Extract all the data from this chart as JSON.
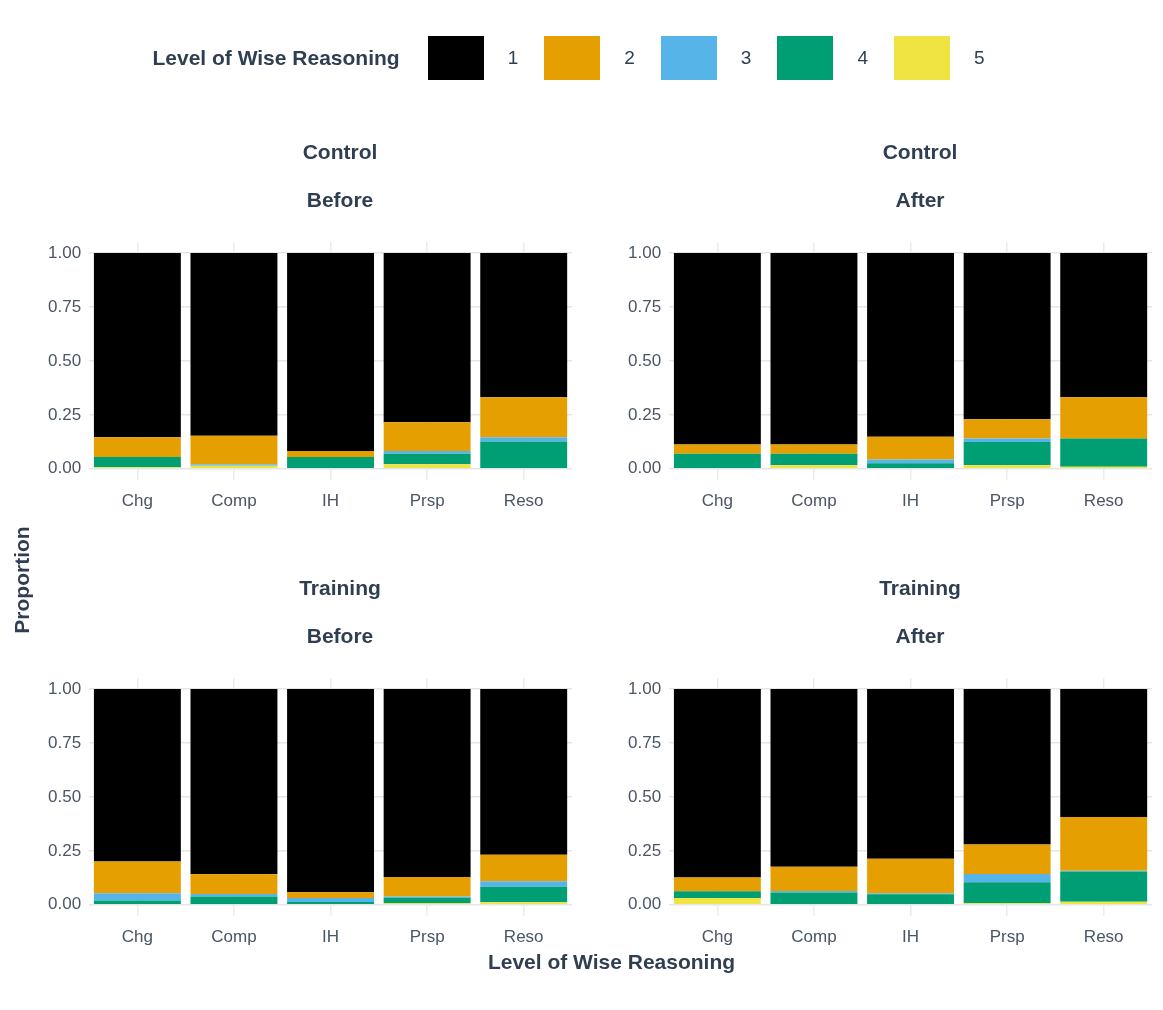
{
  "chart_data": [
    {
      "type": "bar",
      "title": "Control",
      "subtitle": "Before",
      "categories": [
        "Chg",
        "Comp",
        "IH",
        "Prsp",
        "Reso"
      ],
      "stacked": true,
      "legend": "top",
      "legend_title": "Level of Wise Reasoning",
      "ylabel": "Proportion",
      "xlabel": "Level of Wise Reasoning",
      "ylim": [
        -0.05,
        1.05
      ],
      "yticks": [
        {
          "value": 0,
          "label": "0.00"
        },
        {
          "value": 0.25,
          "label": "0.25"
        },
        {
          "value": 0.5,
          "label": "0.50"
        },
        {
          "value": 0.75,
          "label": "0.75"
        },
        {
          "value": 1,
          "label": "1.00"
        }
      ],
      "grid": true,
      "series": [
        {
          "name": "5",
          "color": "#f0e442",
          "values": [
            0.007,
            0.014,
            0,
            0.021,
            0
          ]
        },
        {
          "name": "4",
          "color": "#009e73",
          "values": [
            0.048,
            0,
            0.055,
            0.049,
            0.126
          ]
        },
        {
          "name": "3",
          "color": "#56b4e9",
          "values": [
            0,
            0.007,
            0,
            0.013,
            0.02
          ]
        },
        {
          "name": "2",
          "color": "#e69f00",
          "values": [
            0.091,
            0.132,
            0.028,
            0.133,
            0.186
          ]
        },
        {
          "name": "1",
          "color": "#000000",
          "values": [
            0.854,
            0.847,
            0.917,
            0.784,
            0.668
          ]
        }
      ]
    },
    {
      "type": "bar",
      "title": "Control",
      "subtitle": "After",
      "categories": [
        "Chg",
        "Comp",
        "IH",
        "Prsp",
        "Reso"
      ],
      "stacked": true,
      "ylim": [
        -0.05,
        1.05
      ],
      "yticks": [
        {
          "value": 0,
          "label": "0.00"
        },
        {
          "value": 0.25,
          "label": "0.25"
        },
        {
          "value": 0.5,
          "label": "0.50"
        },
        {
          "value": 0.75,
          "label": "0.75"
        },
        {
          "value": 1,
          "label": "1.00"
        }
      ],
      "grid": true,
      "series": [
        {
          "color": "#f0e442",
          "values": [
            0,
            0.017,
            0,
            0.017,
            0.009
          ]
        },
        {
          "color": "#009e73",
          "values": [
            0.07,
            0.053,
            0.026,
            0.107,
            0.132
          ]
        },
        {
          "color": "#56b4e9",
          "values": [
            0,
            0,
            0.017,
            0.017,
            0
          ]
        },
        {
          "color": "#e69f00",
          "values": [
            0.043,
            0.043,
            0.106,
            0.089,
            0.191
          ]
        },
        {
          "color": "#000000",
          "values": [
            0.887,
            0.887,
            0.851,
            0.77,
            0.668
          ]
        }
      ]
    },
    {
      "type": "bar",
      "title": "Training",
      "subtitle": "Before",
      "categories": [
        "Chg",
        "Comp",
        "IH",
        "Prsp",
        "Reso"
      ],
      "stacked": true,
      "ylim": [
        -0.05,
        1.05
      ],
      "yticks": [
        {
          "value": 0,
          "label": "0.00"
        },
        {
          "value": 0.25,
          "label": "0.25"
        },
        {
          "value": 0.5,
          "label": "0.50"
        },
        {
          "value": 0.75,
          "label": "0.75"
        },
        {
          "value": 1,
          "label": "1.00"
        }
      ],
      "grid": true,
      "series": [
        {
          "color": "#f0e442",
          "values": [
            0,
            0,
            0,
            0.007,
            0.012
          ]
        },
        {
          "color": "#009e73",
          "values": [
            0.02,
            0.039,
            0.013,
            0.026,
            0.072
          ]
        },
        {
          "color": "#56b4e9",
          "values": [
            0.033,
            0.011,
            0.019,
            0.005,
            0.025
          ]
        },
        {
          "color": "#e69f00",
          "values": [
            0.148,
            0.092,
            0.026,
            0.091,
            0.123
          ]
        },
        {
          "color": "#000000",
          "values": [
            0.799,
            0.858,
            0.942,
            0.871,
            0.768
          ]
        }
      ]
    },
    {
      "type": "bar",
      "title": "Training",
      "subtitle": "After",
      "categories": [
        "Chg",
        "Comp",
        "IH",
        "Prsp",
        "Reso"
      ],
      "stacked": true,
      "ylim": [
        -0.05,
        1.05
      ],
      "yticks": [
        {
          "value": 0,
          "label": "0.00"
        },
        {
          "value": 0.25,
          "label": "0.25"
        },
        {
          "value": 0.5,
          "label": "0.50"
        },
        {
          "value": 0.75,
          "label": "0.75"
        },
        {
          "value": 1,
          "label": "1.00"
        }
      ],
      "grid": true,
      "series": [
        {
          "color": "#f0e442",
          "values": [
            0.032,
            0,
            0,
            0.007,
            0.014
          ]
        },
        {
          "color": "#009e73",
          "values": [
            0.031,
            0.057,
            0.049,
            0.097,
            0.14
          ]
        },
        {
          "color": "#56b4e9",
          "values": [
            0,
            0.007,
            0.005,
            0.039,
            0.004
          ]
        },
        {
          "color": "#e69f00",
          "values": [
            0.063,
            0.112,
            0.159,
            0.137,
            0.249
          ]
        },
        {
          "color": "#000000",
          "values": [
            0.874,
            0.824,
            0.787,
            0.72,
            0.593
          ]
        }
      ]
    }
  ]
}
